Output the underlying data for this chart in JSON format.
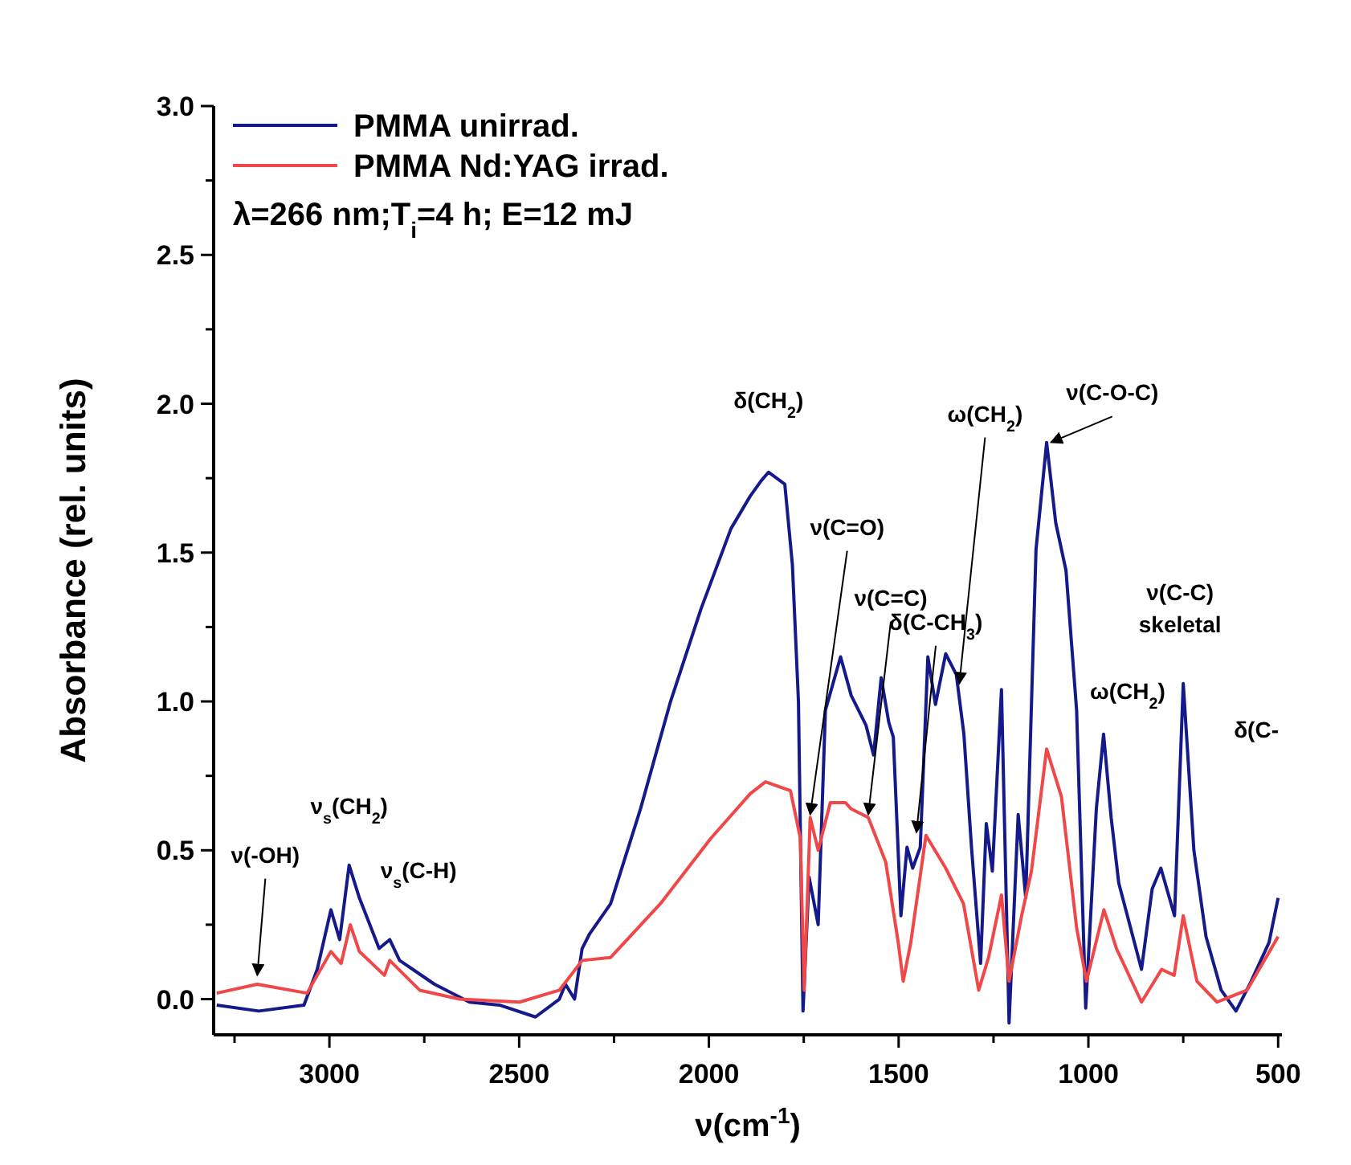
{
  "chart_data": {
    "type": "line",
    "xlabel": "ν(cm$^{-1}$)",
    "ylabel": "Absorbance (rel. units)",
    "legend": "top left",
    "grid": false,
    "line_style": "solid",
    "xlim": [
      3305,
      490
    ],
    "ylim": [
      -0.12,
      3.0
    ],
    "xticks": [
      {
        "value": 3250,
        "label": null
      },
      3000,
      {
        "value": 2750,
        "label": null
      },
      2500,
      {
        "value": 2250,
        "label": null
      },
      2000,
      {
        "value": 1750,
        "label": null
      },
      1500,
      {
        "value": 1250,
        "label": null
      },
      1000,
      {
        "value": 750,
        "label": null
      },
      500
    ],
    "yticks": [
      {
        "value": 0,
        "label": "0.0"
      },
      {
        "value": 0.25,
        "label": null
      },
      0.5,
      {
        "value": 0.75,
        "label": null
      },
      {
        "value": 1,
        "label": "1.0"
      },
      {
        "value": 1.25,
        "label": null
      },
      1.5,
      {
        "value": 1.75,
        "label": null
      },
      {
        "value": 2,
        "label": "2.0"
      },
      {
        "value": 2.25,
        "label": null
      },
      2.5,
      {
        "value": 2.75,
        "label": null
      },
      {
        "value": 3,
        "label": "3.0"
      }
    ],
    "series": [
      {
        "name": "PMMA unirrad.",
        "color": "#141a8a",
        "x": [
          3297,
          3186,
          3067,
          3032,
          2996,
          2973,
          2948,
          2921,
          2869,
          2841,
          2815,
          2723,
          2631,
          2552,
          2457,
          2394,
          2378,
          2354,
          2334,
          2314,
          2259,
          2180,
          2101,
          2021,
          1942,
          1891,
          1863,
          1843,
          1800,
          1780,
          1764,
          1752,
          1736,
          1712,
          1693,
          1653,
          1625,
          1586,
          1566,
          1546,
          1526,
          1514,
          1494,
          1478,
          1463,
          1443,
          1423,
          1403,
          1376,
          1348,
          1328,
          1308,
          1284,
          1269,
          1253,
          1229,
          1209,
          1185,
          1165,
          1138,
          1110,
          1086,
          1059,
          1031,
          1007,
          979,
          960,
          940,
          920,
          860,
          832,
          809,
          773,
          750,
          722,
          690,
          650,
          611,
          571,
          524,
          500
        ],
        "values": [
          -0.02,
          -0.04,
          -0.02,
          0.1,
          0.3,
          0.2,
          0.45,
          0.34,
          0.17,
          0.2,
          0.13,
          0.05,
          -0.01,
          -0.02,
          -0.06,
          0.0,
          0.05,
          0.0,
          0.17,
          0.22,
          0.32,
          0.64,
          1.0,
          1.31,
          1.58,
          1.69,
          1.74,
          1.77,
          1.73,
          1.46,
          1.0,
          -0.04,
          0.41,
          0.25,
          0.97,
          1.15,
          1.02,
          0.92,
          0.82,
          1.08,
          0.93,
          0.88,
          0.28,
          0.51,
          0.44,
          0.51,
          1.15,
          0.99,
          1.16,
          1.09,
          0.89,
          0.51,
          0.12,
          0.59,
          0.43,
          1.04,
          -0.08,
          0.62,
          0.34,
          1.51,
          1.87,
          1.6,
          1.44,
          0.97,
          -0.03,
          0.64,
          0.89,
          0.61,
          0.39,
          0.1,
          0.37,
          0.44,
          0.28,
          1.06,
          0.5,
          0.21,
          0.03,
          -0.04,
          0.06,
          0.19,
          0.34
        ]
      },
      {
        "name": "PMMA Nd:YAG irrad.",
        "color": "#f04848",
        "x": [
          3297,
          3190,
          3059,
          2996,
          2969,
          2945,
          2921,
          2855,
          2841,
          2762,
          2657,
          2499,
          2394,
          2334,
          2259,
          2128,
          1995,
          1891,
          1851,
          1785,
          1759,
          1749,
          1733,
          1712,
          1680,
          1640,
          1626,
          1580,
          1534,
          1501,
          1488,
          1468,
          1428,
          1376,
          1329,
          1289,
          1263,
          1229,
          1209,
          1176,
          1150,
          1110,
          1071,
          1031,
          1005,
          959,
          926,
          860,
          807,
          774,
          750,
          714,
          661,
          582,
          500
        ],
        "values": [
          0.02,
          0.05,
          0.02,
          0.16,
          0.12,
          0.25,
          0.16,
          0.08,
          0.13,
          0.03,
          0.0,
          -0.01,
          0.03,
          0.13,
          0.14,
          0.32,
          0.54,
          0.69,
          0.73,
          0.7,
          0.54,
          0.03,
          0.61,
          0.5,
          0.66,
          0.66,
          0.64,
          0.61,
          0.46,
          0.19,
          0.06,
          0.19,
          0.55,
          0.44,
          0.32,
          0.03,
          0.14,
          0.35,
          0.06,
          0.28,
          0.43,
          0.84,
          0.68,
          0.24,
          0.06,
          0.3,
          0.17,
          -0.01,
          0.1,
          0.08,
          0.28,
          0.06,
          -0.01,
          0.03,
          0.21
        ]
      }
    ],
    "annotations": [
      {
        "text": "ν(-OH)",
        "x": 3190,
        "y": 0.07
      },
      {
        "text": "ν$_{s}$(CH$_{2}$)",
        "x": 2948,
        "y": 0.47
      },
      {
        "text": "ν$_{s}$(C-H)",
        "x": 2841,
        "y": 0.2
      },
      {
        "text": "δ(CH$_{2}$)",
        "x": 1843,
        "y": 1.77
      },
      {
        "text": "ν(C=O)",
        "x": 1733,
        "y": 0.61
      },
      {
        "text": "ν(C=C)",
        "x": 1580,
        "y": 0.61
      },
      {
        "text": "δ(C-CH$_{3}$)",
        "x": 1453,
        "y": 0.55
      },
      {
        "text": "ω(CH$_{2}$)",
        "x": 1340,
        "y": 1.05
      },
      {
        "text": "ν(C-O-C)",
        "x": 1098,
        "y": 1.86
      },
      {
        "text": "ν(C-C)\nskeletal",
        "x": 750,
        "y": 1.06
      },
      {
        "text": "ω(CH$_{2}$)",
        "x": 960,
        "y": 0.89
      },
      "δ(C-",
      "λ=266 nm;T$_{i}$=4 h; E=12 mJ"
    ]
  }
}
